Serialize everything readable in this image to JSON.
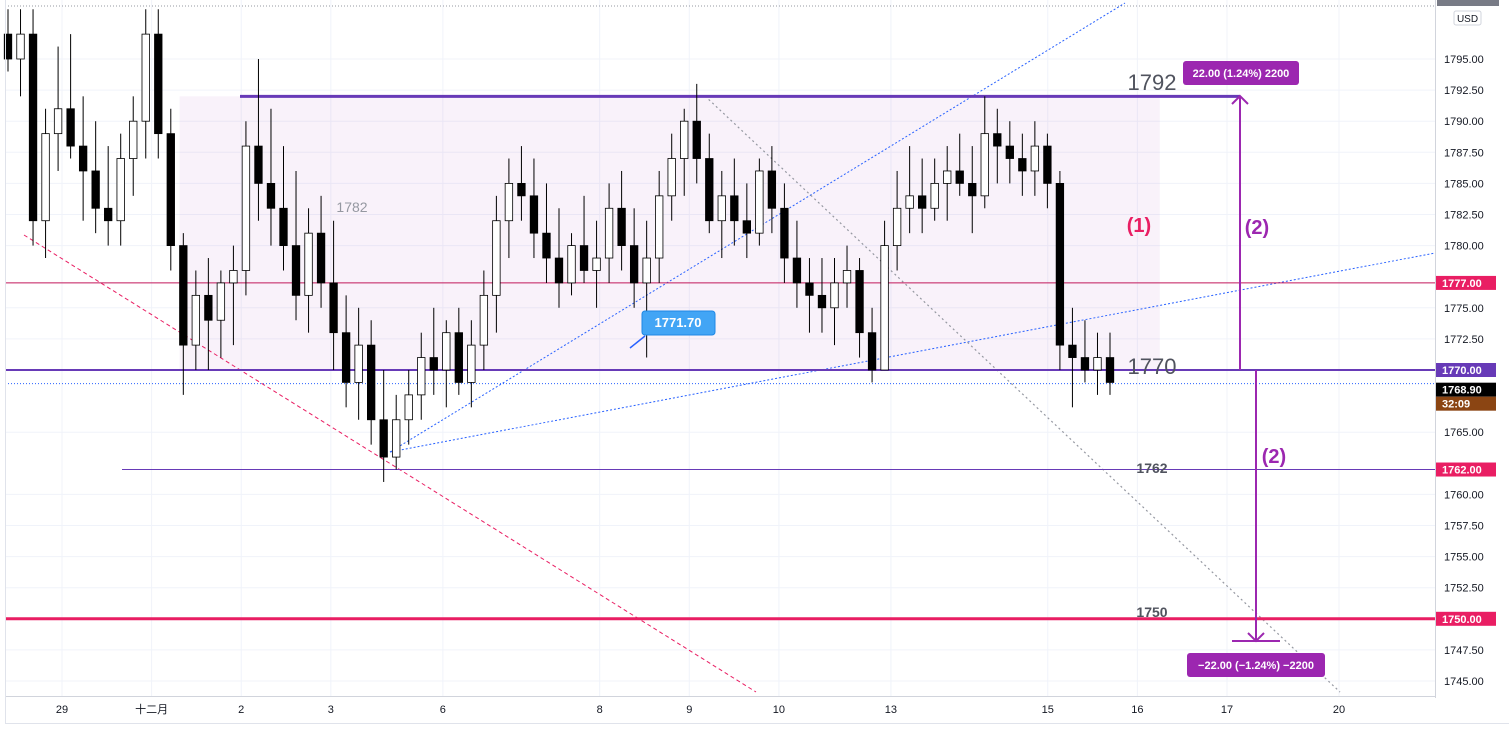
{
  "chart_data": {
    "type": "candlestick",
    "currency": "USD",
    "y_axis": {
      "min": 1744,
      "max": 1799,
      "ticks": [
        "1795.00",
        "1792.50",
        "1790.00",
        "1787.50",
        "1785.00",
        "1782.50",
        "1780.00",
        "1775.00",
        "1772.50",
        "1765.00",
        "1760.00",
        "1757.50",
        "1755.00",
        "1752.50",
        "1747.50",
        "1745.00"
      ]
    },
    "x_axis": {
      "ticks": [
        {
          "label": "29",
          "t": 12
        },
        {
          "label": "十二月",
          "t": 28
        },
        {
          "label": "2",
          "t": 44
        },
        {
          "label": "3",
          "t": 60
        },
        {
          "label": "6",
          "t": 80
        },
        {
          "label": "8",
          "t": 108
        },
        {
          "label": "9",
          "t": 124
        },
        {
          "label": "10",
          "t": 140
        },
        {
          "label": "13",
          "t": 160
        },
        {
          "label": "15",
          "t": 188
        },
        {
          "label": "16",
          "t": 204
        },
        {
          "label": "17",
          "t": 220
        },
        {
          "label": "20",
          "t": 240
        }
      ]
    },
    "levels": [
      {
        "price": 1792,
        "label": "1792",
        "color": "#673ab7"
      },
      {
        "price": 1777,
        "label": "1777.00",
        "color": "#c2185b"
      },
      {
        "price": 1770,
        "label": "1770",
        "color": "#673ab7"
      },
      {
        "price": 1762,
        "label": "1762",
        "color": "#673ab7"
      },
      {
        "price": 1750,
        "label": "1750",
        "color": "#e91e63"
      }
    ],
    "price_badges": [
      {
        "text": "1777.00",
        "price": 1777,
        "color": "#e91e63"
      },
      {
        "text": "1770.00",
        "price": 1770,
        "color": "#673ab7"
      },
      {
        "text": "1768.90",
        "price": 1768.9,
        "color": "#000000"
      },
      {
        "text": "32:09",
        "price": 1768.9,
        "color": "#8b4513",
        "sub": true
      },
      {
        "text": "1762.00",
        "price": 1762,
        "color": "#e91e63"
      },
      {
        "text": "1750.00",
        "price": 1750,
        "color": "#e91e63"
      }
    ],
    "range_box": {
      "t0": 33,
      "t1": 208,
      "top": 1792,
      "bottom": 1770,
      "label": "1782"
    },
    "annotations": {
      "one": "(1)",
      "two_up": "(2)",
      "two_down": "(2)",
      "callout": "1771.70",
      "measure_up": "22.00 (1.24%) 2200",
      "measure_down": "−22.00 (−1.24%) −2200"
    },
    "candles": [
      [
        1797,
        1799,
        1794,
        1795
      ],
      [
        1795,
        1799,
        1792,
        1797
      ],
      [
        1797,
        1799,
        1780,
        1782
      ],
      [
        1782,
        1791,
        1779,
        1789
      ],
      [
        1789,
        1796,
        1786,
        1791
      ],
      [
        1791,
        1797,
        1787,
        1788
      ],
      [
        1788,
        1792,
        1782,
        1786
      ],
      [
        1786,
        1790,
        1781,
        1783
      ],
      [
        1783,
        1788,
        1780,
        1782
      ],
      [
        1782,
        1789,
        1780,
        1787
      ],
      [
        1787,
        1792,
        1784,
        1790
      ],
      [
        1790,
        1799,
        1787,
        1797
      ],
      [
        1797,
        1799,
        1787,
        1789
      ],
      [
        1789,
        1791,
        1778,
        1780
      ],
      [
        1780,
        1781,
        1768,
        1772
      ],
      [
        1772,
        1778,
        1770,
        1776
      ],
      [
        1776,
        1779,
        1770,
        1774
      ],
      [
        1774,
        1778,
        1771,
        1777
      ],
      [
        1777,
        1780,
        1772,
        1778
      ],
      [
        1778,
        1790,
        1776,
        1788
      ],
      [
        1788,
        1795,
        1782,
        1785
      ],
      [
        1785,
        1791,
        1780,
        1783
      ],
      [
        1783,
        1788,
        1778,
        1780
      ],
      [
        1780,
        1786,
        1774,
        1776
      ],
      [
        1776,
        1783,
        1773,
        1781
      ],
      [
        1781,
        1784,
        1775,
        1777
      ],
      [
        1777,
        1782,
        1770,
        1773
      ],
      [
        1773,
        1776,
        1767,
        1769
      ],
      [
        1769,
        1775,
        1766,
        1772
      ],
      [
        1772,
        1774,
        1764,
        1766
      ],
      [
        1766,
        1770,
        1761,
        1763
      ],
      [
        1763,
        1768,
        1762,
        1766
      ],
      [
        1766,
        1770,
        1764,
        1768
      ],
      [
        1768,
        1773,
        1766,
        1771
      ],
      [
        1771,
        1775,
        1768,
        1770
      ],
      [
        1770,
        1774,
        1767,
        1773
      ],
      [
        1773,
        1775,
        1768,
        1769
      ],
      [
        1769,
        1774,
        1767,
        1772
      ],
      [
        1772,
        1778,
        1770,
        1776
      ],
      [
        1776,
        1784,
        1773,
        1782
      ],
      [
        1782,
        1787,
        1779,
        1785
      ],
      [
        1785,
        1788,
        1782,
        1784
      ],
      [
        1784,
        1787,
        1779,
        1781
      ],
      [
        1781,
        1785,
        1777,
        1779
      ],
      [
        1779,
        1783,
        1775,
        1777
      ],
      [
        1777,
        1781,
        1776,
        1780
      ],
      [
        1780,
        1784,
        1777,
        1778
      ],
      [
        1778,
        1782,
        1775,
        1779
      ],
      [
        1779,
        1785,
        1777,
        1783
      ],
      [
        1783,
        1786,
        1778,
        1780
      ],
      [
        1780,
        1783,
        1775,
        1777
      ],
      [
        1777,
        1782,
        1771,
        1779
      ],
      [
        1779,
        1786,
        1777,
        1784
      ],
      [
        1784,
        1789,
        1782,
        1787
      ],
      [
        1787,
        1791,
        1784,
        1790
      ],
      [
        1790,
        1793,
        1785,
        1787
      ],
      [
        1787,
        1789,
        1781,
        1782
      ],
      [
        1782,
        1786,
        1779,
        1784
      ],
      [
        1784,
        1787,
        1780,
        1782
      ],
      [
        1782,
        1785,
        1779,
        1781
      ],
      [
        1781,
        1787,
        1780,
        1786
      ],
      [
        1786,
        1788,
        1781,
        1783
      ],
      [
        1783,
        1785,
        1777,
        1779
      ],
      [
        1779,
        1782,
        1775,
        1777
      ],
      [
        1777,
        1779,
        1773,
        1776
      ],
      [
        1776,
        1779,
        1773,
        1775
      ],
      [
        1775,
        1779,
        1772,
        1777
      ],
      [
        1777,
        1780,
        1775,
        1778
      ],
      [
        1778,
        1779,
        1771,
        1773
      ],
      [
        1773,
        1775,
        1769,
        1770
      ],
      [
        1770,
        1782,
        1770,
        1780
      ],
      [
        1780,
        1786,
        1778,
        1783
      ],
      [
        1783,
        1788,
        1781,
        1784
      ],
      [
        1784,
        1787,
        1781,
        1783
      ],
      [
        1783,
        1787,
        1782,
        1785
      ],
      [
        1785,
        1788,
        1782,
        1786
      ],
      [
        1786,
        1789,
        1784,
        1785
      ],
      [
        1785,
        1788,
        1781,
        1784
      ],
      [
        1784,
        1792,
        1783,
        1789
      ],
      [
        1789,
        1791,
        1785,
        1788
      ],
      [
        1788,
        1790,
        1785,
        1787
      ],
      [
        1787,
        1789,
        1784,
        1786
      ],
      [
        1786,
        1790,
        1784,
        1788
      ],
      [
        1788,
        1789,
        1783,
        1785
      ],
      [
        1785,
        1786,
        1770,
        1772
      ],
      [
        1772,
        1775,
        1767,
        1771
      ],
      [
        1771,
        1774,
        1769,
        1770
      ],
      [
        1770,
        1773,
        1768,
        1771
      ],
      [
        1771,
        1773,
        1768,
        1769
      ]
    ]
  }
}
